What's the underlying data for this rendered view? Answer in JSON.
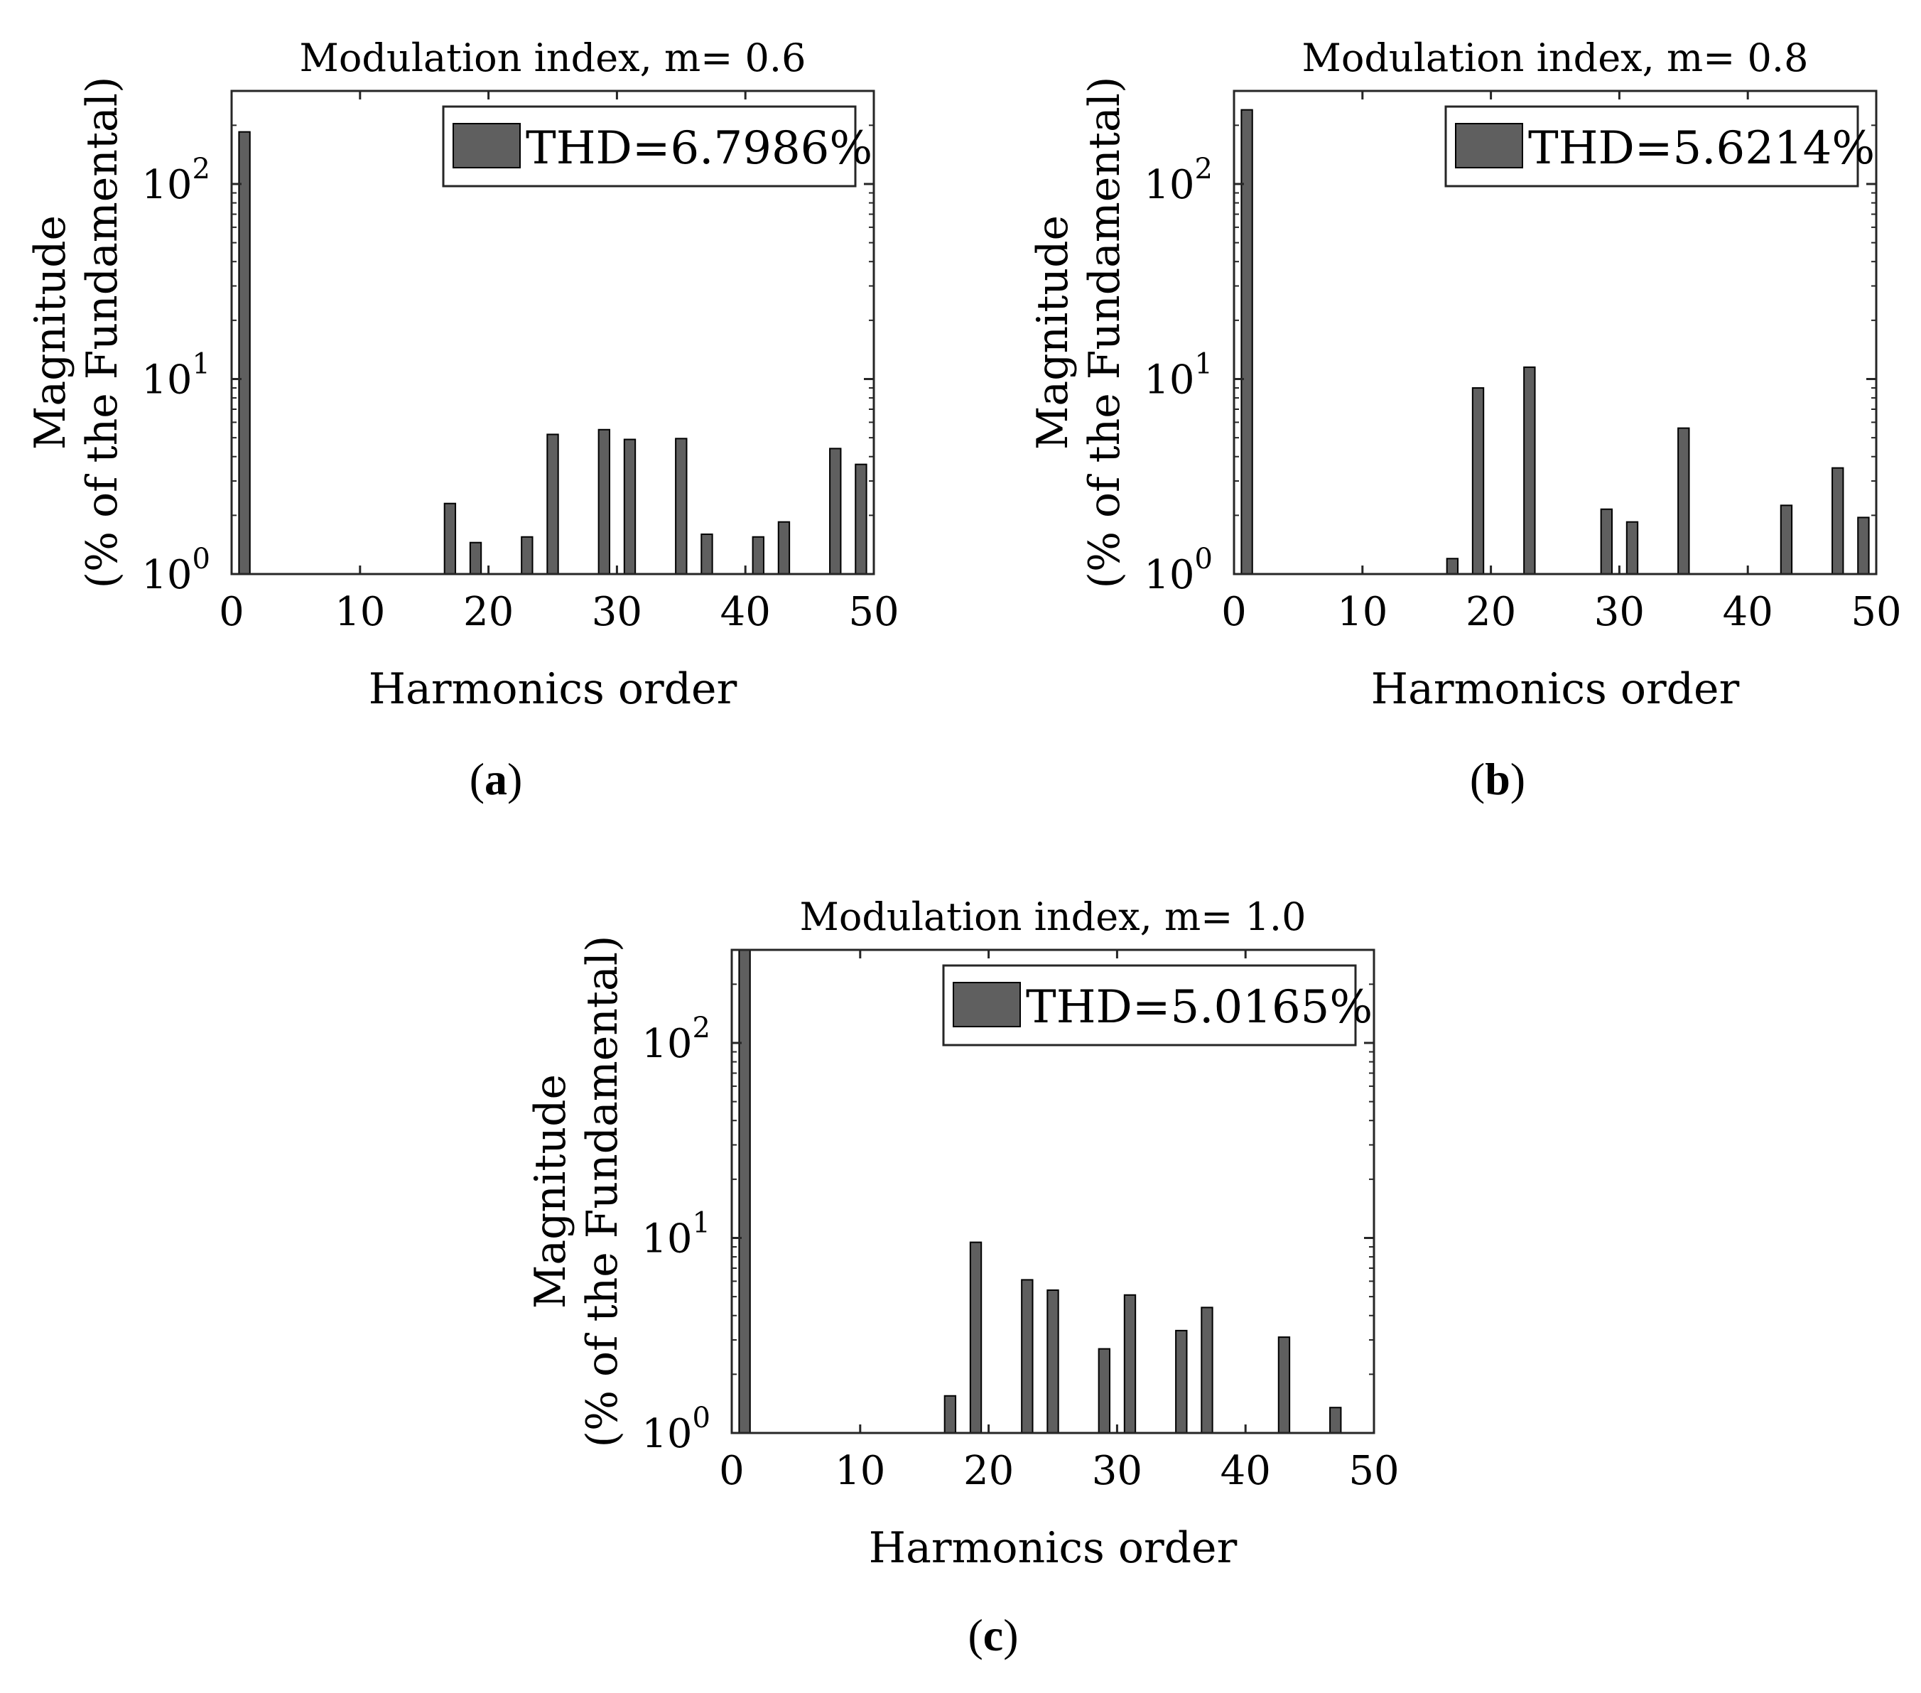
{
  "chart_data": [
    {
      "id": "a",
      "type": "bar",
      "title": "Modulation index, m= 0.6",
      "xlabel": "Harmonics order",
      "ylabel": [
        "Magnitude",
        "(% of the Fundamental)"
      ],
      "yscale": "log",
      "xlim": [
        0,
        50
      ],
      "ylim": [
        1,
        300
      ],
      "xticks": [
        0,
        10,
        20,
        30,
        40,
        50
      ],
      "yticks": [
        {
          "base": "10",
          "exp": "0",
          "value": 1
        },
        {
          "base": "10",
          "exp": "1",
          "value": 10
        },
        {
          "base": "10",
          "exp": "2",
          "value": 100
        }
      ],
      "legend": {
        "label": "THD=6.7986%",
        "position": "top-right"
      },
      "color": "#5f5f5f",
      "x": [
        1,
        17,
        19,
        23,
        25,
        29,
        31,
        35,
        37,
        41,
        43,
        47,
        49
      ],
      "values": [
        185,
        2.3,
        1.45,
        1.55,
        5.2,
        5.5,
        4.9,
        4.95,
        1.6,
        1.55,
        1.85,
        4.4,
        3.65
      ],
      "caption": "a"
    },
    {
      "id": "b",
      "type": "bar",
      "title": "Modulation index, m= 0.8",
      "xlabel": "Harmonics order",
      "ylabel": [
        "Magnitude",
        "(% of the Fundamental)"
      ],
      "yscale": "log",
      "xlim": [
        0,
        50
      ],
      "ylim": [
        1,
        300
      ],
      "xticks": [
        0,
        10,
        20,
        30,
        40,
        50
      ],
      "yticks": [
        {
          "base": "10",
          "exp": "0",
          "value": 1
        },
        {
          "base": "10",
          "exp": "1",
          "value": 10
        },
        {
          "base": "10",
          "exp": "2",
          "value": 100
        }
      ],
      "legend": {
        "label": "THD=5.6214%",
        "position": "top-right"
      },
      "color": "#5f5f5f",
      "x": [
        1,
        17,
        19,
        23,
        29,
        31,
        35,
        43,
        47,
        49
      ],
      "values": [
        240,
        1.2,
        9.0,
        11.5,
        2.15,
        1.85,
        5.6,
        2.25,
        3.5,
        1.95
      ],
      "caption": "b"
    },
    {
      "id": "c",
      "type": "bar",
      "title": "Modulation index, m= 1.0",
      "xlabel": "Harmonics order",
      "ylabel": [
        "Magnitude",
        "(% of the Fundamental)"
      ],
      "yscale": "log",
      "xlim": [
        0,
        50
      ],
      "ylim": [
        1,
        300
      ],
      "xticks": [
        0,
        10,
        20,
        30,
        40,
        50
      ],
      "yticks": [
        {
          "base": "10",
          "exp": "0",
          "value": 1
        },
        {
          "base": "10",
          "exp": "1",
          "value": 10
        },
        {
          "base": "10",
          "exp": "2",
          "value": 100
        }
      ],
      "legend": {
        "label": "THD=5.0165%",
        "position": "top-right"
      },
      "color": "#5f5f5f",
      "x": [
        1,
        17,
        19,
        23,
        25,
        29,
        31,
        35,
        37,
        43,
        47
      ],
      "values": [
        300,
        1.55,
        9.5,
        6.1,
        5.4,
        2.7,
        5.1,
        3.35,
        4.4,
        3.1,
        1.35
      ],
      "caption": "c"
    }
  ]
}
